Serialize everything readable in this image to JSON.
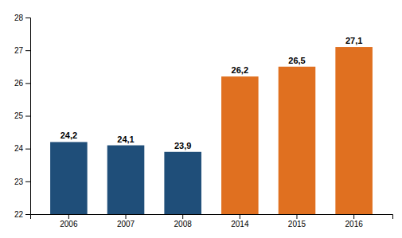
{
  "chart_data": {
    "type": "bar",
    "categories": [
      "2006",
      "2007",
      "2008",
      "2014",
      "2015",
      "2016"
    ],
    "values": [
      24.2,
      24.1,
      23.9,
      26.2,
      26.5,
      27.1
    ],
    "value_labels": [
      "24,2",
      "24,1",
      "23,9",
      "26,2",
      "26,5",
      "27,1"
    ],
    "colors": [
      "#1f4e79",
      "#1f4e79",
      "#1f4e79",
      "#e07020",
      "#e07020",
      "#e07020"
    ],
    "ylim": [
      22,
      28
    ],
    "yticks": [
      22,
      23,
      24,
      25,
      26,
      27,
      28
    ],
    "grid": false,
    "data_labels": true
  }
}
